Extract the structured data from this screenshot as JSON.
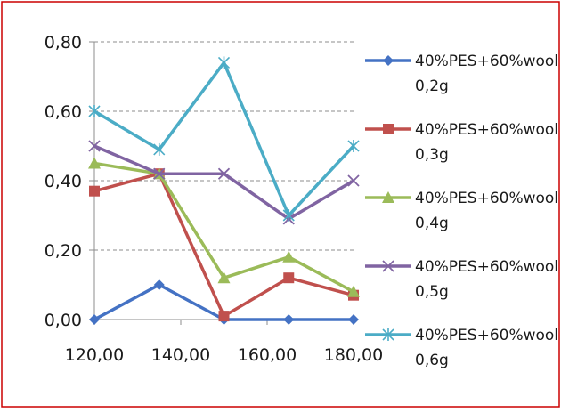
{
  "colors": {
    "frame": "#cc0000",
    "grid": "#8c8c8c",
    "axis": "#8c8c8c"
  },
  "chart_data": {
    "type": "line",
    "title": "",
    "xlabel": "",
    "ylabel": "",
    "x": [
      120,
      135,
      150,
      165,
      180
    ],
    "xlim": [
      120,
      180
    ],
    "ylim": [
      0,
      0.8
    ],
    "x_ticks": [
      120,
      140,
      160,
      180
    ],
    "y_ticks": [
      0,
      0.2,
      0.4,
      0.6,
      0.8
    ],
    "x_tick_labels": [
      "120,00",
      "140,00",
      "160,00",
      "180,00"
    ],
    "y_tick_labels": [
      "0,00",
      "0,20",
      "0,40",
      "0,60",
      "0,80"
    ],
    "grid": "horizontal dashed",
    "legend_position": "right",
    "series": [
      {
        "name": "40%PES+60%wool 0,2g",
        "line1": "40%PES+60%wool",
        "line2": "0,2g",
        "color": "#4472c4",
        "marker": "diamond",
        "values": [
          0.0,
          0.1,
          0.0,
          0.0,
          0.0
        ]
      },
      {
        "name": "40%PES+60%wool 0,3g",
        "line1": "40%PES+60%wool",
        "line2": "0,3g",
        "color": "#c0504d",
        "marker": "square",
        "values": [
          0.37,
          0.42,
          0.01,
          0.12,
          0.07
        ]
      },
      {
        "name": "40%PES+60%wool 0,4g",
        "line1": "40%PES+60%wool",
        "line2": "0,4g",
        "color": "#9bbb59",
        "marker": "triangle",
        "values": [
          0.45,
          0.42,
          0.12,
          0.18,
          0.08
        ]
      },
      {
        "name": "40%PES+60%wool 0,5g",
        "line1": "40%PES+60%wool",
        "line2": "0,5g",
        "color": "#8064a2",
        "marker": "x",
        "values": [
          0.5,
          0.42,
          0.42,
          0.29,
          0.4
        ]
      },
      {
        "name": "40%PES+60%wool 0,6g",
        "line1": "40%PES+60%wool",
        "line2": "0,6g",
        "color": "#4bacc6",
        "marker": "star",
        "values": [
          0.6,
          0.49,
          0.74,
          0.3,
          0.5
        ]
      }
    ]
  }
}
